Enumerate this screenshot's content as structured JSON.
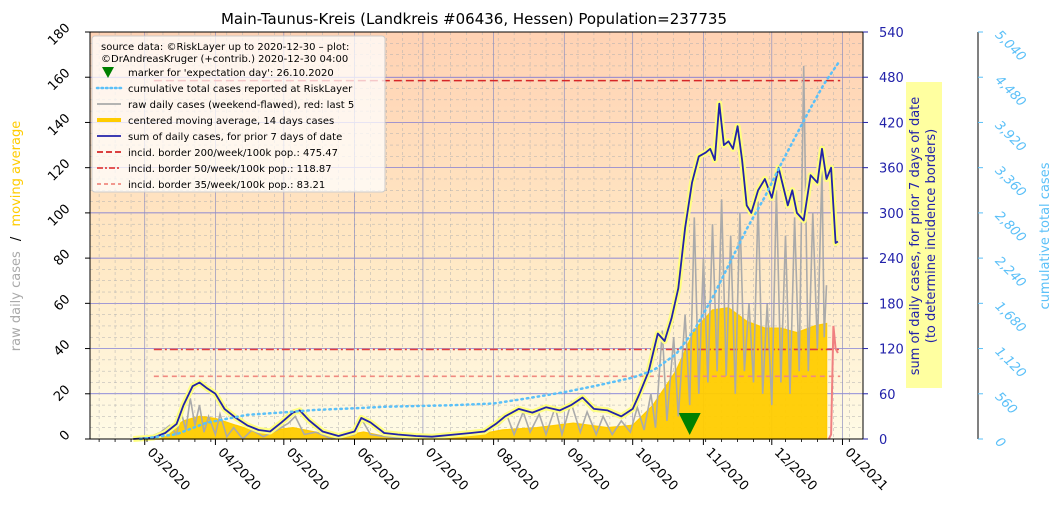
{
  "chart_data": {
    "type": "line",
    "title": "Main-Taunus-Kreis (Landkreis #06436, Hessen) Population=237735",
    "ylabel_left_gray": "raw daily cases",
    "ylabel_left_sep": "/",
    "ylabel_left_yellow": "moving average",
    "ylabel_right_line1": "sum of daily cases, for prior 7 days of date",
    "ylabel_right_line2": "(to determine incidence borders)",
    "ylabel_far_right": "cumulative total cases",
    "x_tick_labels": [
      "03/2020",
      "04/2020",
      "05/2020",
      "06/2020",
      "07/2020",
      "08/2020",
      "09/2020",
      "10/2020",
      "11/2020",
      "12/2020",
      "01/2021"
    ],
    "x_tick_dates": [
      "2020-03-01",
      "2020-04-01",
      "2020-05-01",
      "2020-06-01",
      "2020-07-01",
      "2020-08-01",
      "2020-09-01",
      "2020-10-01",
      "2020-11-01",
      "2020-12-01",
      "2021-01-01"
    ],
    "xlim": [
      "2020-02-06",
      "2021-01-10"
    ],
    "ylim_left": [
      0,
      180
    ],
    "y_ticks_left": [
      "0",
      "20",
      "40",
      "60",
      "80",
      "100",
      "120",
      "140",
      "160",
      "180"
    ],
    "ylim_right": [
      0,
      540
    ],
    "y_ticks_right": [
      "0",
      "60",
      "120",
      "180",
      "240",
      "300",
      "360",
      "420",
      "480",
      "540"
    ],
    "ylim_far_right": [
      0,
      5040
    ],
    "y_ticks_far_right": [
      "0",
      "560",
      "1,120",
      "1,680",
      "2,240",
      "2,800",
      "3,360",
      "3,920",
      "4,480",
      "5,040"
    ],
    "legend": {
      "placement": "top-left",
      "source_line1": "source data: ©RiskLayer up to 2020-12-30 – plot:",
      "source_line2": "©DrAndreasKruger (+contrib.) 2020-12-30 04:00",
      "entries": [
        "marker for 'expectation day': 26.10.2020",
        "cumulative total cases reported at RiskLayer",
        "raw daily cases (weekend-flawed), red: last 5",
        "centered moving average, 14 days cases",
        "sum of daily cases, for prior 7 days of date",
        "incid. border 200/week/100k pop.: 475.47",
        "incid. border 50/week/100k pop.: 118.87",
        "incid. border 35/week/100k pop.: 83.21"
      ]
    },
    "incidence_borders": [
      475.47,
      118.87,
      83.21
    ],
    "expectation_day": "2020-10-26",
    "colors": {
      "raw": "#aaaaaa",
      "raw_last5": "#f08080",
      "moving_average": "#ffcc00",
      "sum7": "#2222aa",
      "cumulative": "#5bc0f8",
      "border200": "#d62728",
      "border50": "#e04040",
      "border35": "#f08a80",
      "marker": "#008000",
      "left_axis_gray": "#aaaaaa",
      "left_axis_yellow": "#ffcc00",
      "right_axis": "#2222aa",
      "far_right_axis": "#5bc0f8"
    },
    "sum7_series": [
      [
        "2020-02-25",
        0
      ],
      [
        "2020-03-05",
        2
      ],
      [
        "2020-03-10",
        8
      ],
      [
        "2020-03-15",
        20
      ],
      [
        "2020-03-18",
        45
      ],
      [
        "2020-03-22",
        70
      ],
      [
        "2020-03-25",
        75
      ],
      [
        "2020-03-28",
        68
      ],
      [
        "2020-04-01",
        60
      ],
      [
        "2020-04-05",
        40
      ],
      [
        "2020-04-10",
        28
      ],
      [
        "2020-04-15",
        18
      ],
      [
        "2020-04-20",
        12
      ],
      [
        "2020-04-25",
        10
      ],
      [
        "2020-04-30",
        22
      ],
      [
        "2020-05-05",
        35
      ],
      [
        "2020-05-08",
        38
      ],
      [
        "2020-05-12",
        25
      ],
      [
        "2020-05-18",
        10
      ],
      [
        "2020-05-25",
        4
      ],
      [
        "2020-06-01",
        10
      ],
      [
        "2020-06-04",
        28
      ],
      [
        "2020-06-08",
        22
      ],
      [
        "2020-06-14",
        8
      ],
      [
        "2020-06-20",
        6
      ],
      [
        "2020-06-28",
        4
      ],
      [
        "2020-07-05",
        3
      ],
      [
        "2020-07-15",
        6
      ],
      [
        "2020-07-22",
        8
      ],
      [
        "2020-07-28",
        10
      ],
      [
        "2020-08-02",
        20
      ],
      [
        "2020-08-06",
        30
      ],
      [
        "2020-08-12",
        40
      ],
      [
        "2020-08-18",
        35
      ],
      [
        "2020-08-24",
        42
      ],
      [
        "2020-08-30",
        38
      ],
      [
        "2020-09-04",
        45
      ],
      [
        "2020-09-09",
        55
      ],
      [
        "2020-09-14",
        40
      ],
      [
        "2020-09-20",
        38
      ],
      [
        "2020-09-26",
        30
      ],
      [
        "2020-10-01",
        40
      ],
      [
        "2020-10-04",
        60
      ],
      [
        "2020-10-08",
        90
      ],
      [
        "2020-10-12",
        140
      ],
      [
        "2020-10-15",
        130
      ],
      [
        "2020-10-18",
        160
      ],
      [
        "2020-10-21",
        200
      ],
      [
        "2020-10-24",
        280
      ],
      [
        "2020-10-27",
        340
      ],
      [
        "2020-10-30",
        375
      ],
      [
        "2020-11-02",
        380
      ],
      [
        "2020-11-04",
        385
      ],
      [
        "2020-11-06",
        370
      ],
      [
        "2020-11-08",
        445
      ],
      [
        "2020-11-10",
        390
      ],
      [
        "2020-11-12",
        395
      ],
      [
        "2020-11-14",
        385
      ],
      [
        "2020-11-16",
        415
      ],
      [
        "2020-11-18",
        370
      ],
      [
        "2020-11-20",
        310
      ],
      [
        "2020-11-22",
        300
      ],
      [
        "2020-11-25",
        330
      ],
      [
        "2020-11-28",
        345
      ],
      [
        "2020-12-01",
        320
      ],
      [
        "2020-12-04",
        360
      ],
      [
        "2020-12-06",
        335
      ],
      [
        "2020-12-08",
        310
      ],
      [
        "2020-12-10",
        330
      ],
      [
        "2020-12-12",
        300
      ],
      [
        "2020-12-15",
        290
      ],
      [
        "2020-12-18",
        350
      ],
      [
        "2020-12-21",
        340
      ],
      [
        "2020-12-23",
        385
      ],
      [
        "2020-12-25",
        345
      ],
      [
        "2020-12-27",
        360
      ],
      [
        "2020-12-29",
        260
      ],
      [
        "2020-12-30",
        262
      ]
    ],
    "moving_average_series": [
      [
        "2020-02-25",
        0
      ],
      [
        "2020-03-10",
        2
      ],
      [
        "2020-03-18",
        8
      ],
      [
        "2020-03-25",
        10
      ],
      [
        "2020-04-01",
        9
      ],
      [
        "2020-04-10",
        6
      ],
      [
        "2020-04-20",
        3
      ],
      [
        "2020-05-05",
        5
      ],
      [
        "2020-05-15",
        3
      ],
      [
        "2020-05-25",
        1
      ],
      [
        "2020-06-05",
        3
      ],
      [
        "2020-06-15",
        1
      ],
      [
        "2020-07-01",
        0.5
      ],
      [
        "2020-07-20",
        1
      ],
      [
        "2020-08-05",
        4
      ],
      [
        "2020-08-20",
        5
      ],
      [
        "2020-09-05",
        7
      ],
      [
        "2020-09-20",
        5
      ],
      [
        "2020-10-01",
        6
      ],
      [
        "2020-10-10",
        15
      ],
      [
        "2020-10-20",
        30
      ],
      [
        "2020-10-28",
        48
      ],
      [
        "2020-11-05",
        57
      ],
      [
        "2020-11-12",
        58
      ],
      [
        "2020-11-20",
        52
      ],
      [
        "2020-11-28",
        49
      ],
      [
        "2020-12-05",
        49
      ],
      [
        "2020-12-12",
        47
      ],
      [
        "2020-12-20",
        50
      ],
      [
        "2020-12-25",
        51
      ]
    ],
    "raw_series": [
      [
        "2020-03-01",
        0
      ],
      [
        "2020-03-08",
        3
      ],
      [
        "2020-03-12",
        6
      ],
      [
        "2020-03-15",
        2
      ],
      [
        "2020-03-17",
        12
      ],
      [
        "2020-03-19",
        4
      ],
      [
        "2020-03-21",
        18
      ],
      [
        "2020-03-23",
        6
      ],
      [
        "2020-03-25",
        15
      ],
      [
        "2020-03-27",
        3
      ],
      [
        "2020-03-29",
        10
      ],
      [
        "2020-04-01",
        2
      ],
      [
        "2020-04-03",
        11
      ],
      [
        "2020-04-06",
        1
      ],
      [
        "2020-04-09",
        5
      ],
      [
        "2020-04-13",
        0
      ],
      [
        "2020-04-17",
        4
      ],
      [
        "2020-04-22",
        1
      ],
      [
        "2020-04-28",
        4
      ],
      [
        "2020-05-03",
        7
      ],
      [
        "2020-05-06",
        10
      ],
      [
        "2020-05-10",
        2
      ],
      [
        "2020-05-15",
        3
      ],
      [
        "2020-05-22",
        0
      ],
      [
        "2020-06-01",
        2
      ],
      [
        "2020-06-04",
        9
      ],
      [
        "2020-06-08",
        2
      ],
      [
        "2020-06-15",
        1
      ],
      [
        "2020-06-25",
        0
      ],
      [
        "2020-07-10",
        1
      ],
      [
        "2020-07-25",
        2
      ],
      [
        "2020-08-03",
        6
      ],
      [
        "2020-08-07",
        10
      ],
      [
        "2020-08-10",
        2
      ],
      [
        "2020-08-14",
        12
      ],
      [
        "2020-08-17",
        3
      ],
      [
        "2020-08-21",
        11
      ],
      [
        "2020-08-24",
        2
      ],
      [
        "2020-08-28",
        14
      ],
      [
        "2020-08-31",
        2
      ],
      [
        "2020-09-04",
        16
      ],
      [
        "2020-09-08",
        3
      ],
      [
        "2020-09-11",
        12
      ],
      [
        "2020-09-15",
        2
      ],
      [
        "2020-09-18",
        10
      ],
      [
        "2020-09-22",
        2
      ],
      [
        "2020-09-26",
        8
      ],
      [
        "2020-09-30",
        3
      ],
      [
        "2020-10-03",
        14
      ],
      [
        "2020-10-06",
        4
      ],
      [
        "2020-10-09",
        20
      ],
      [
        "2020-10-11",
        5
      ],
      [
        "2020-10-14",
        48
      ],
      [
        "2020-10-16",
        8
      ],
      [
        "2020-10-19",
        45
      ],
      [
        "2020-10-21",
        10
      ],
      [
        "2020-10-24",
        55
      ],
      [
        "2020-10-26",
        15
      ],
      [
        "2020-10-28",
        98
      ],
      [
        "2020-10-30",
        20
      ],
      [
        "2020-11-01",
        80
      ],
      [
        "2020-11-03",
        25
      ],
      [
        "2020-11-05",
        95
      ],
      [
        "2020-11-07",
        30
      ],
      [
        "2020-11-09",
        106
      ],
      [
        "2020-11-11",
        28
      ],
      [
        "2020-11-13",
        90
      ],
      [
        "2020-11-15",
        20
      ],
      [
        "2020-11-17",
        100
      ],
      [
        "2020-11-19",
        30
      ],
      [
        "2020-11-21",
        60
      ],
      [
        "2020-11-23",
        25
      ],
      [
        "2020-11-25",
        105
      ],
      [
        "2020-11-27",
        20
      ],
      [
        "2020-11-29",
        60
      ],
      [
        "2020-12-01",
        15
      ],
      [
        "2020-12-03",
        110
      ],
      [
        "2020-12-05",
        25
      ],
      [
        "2020-12-07",
        90
      ],
      [
        "2020-12-09",
        20
      ],
      [
        "2020-12-11",
        98
      ],
      [
        "2020-12-13",
        30
      ],
      [
        "2020-12-15",
        165
      ],
      [
        "2020-12-17",
        30
      ],
      [
        "2020-12-19",
        100
      ],
      [
        "2020-12-21",
        40
      ],
      [
        "2020-12-23",
        120
      ],
      [
        "2020-12-24",
        45
      ],
      [
        "2020-12-25",
        68
      ]
    ],
    "raw_last5_series": [
      [
        "2020-12-26",
        0
      ],
      [
        "2020-12-27",
        2
      ],
      [
        "2020-12-28",
        50
      ],
      [
        "2020-12-29",
        40
      ],
      [
        "2020-12-30",
        38
      ]
    ],
    "cumulative_series": [
      [
        "2020-02-28",
        0
      ],
      [
        "2020-03-15",
        60
      ],
      [
        "2020-03-28",
        200
      ],
      [
        "2020-04-15",
        300
      ],
      [
        "2020-05-01",
        330
      ],
      [
        "2020-05-15",
        360
      ],
      [
        "2020-06-01",
        380
      ],
      [
        "2020-06-15",
        400
      ],
      [
        "2020-07-01",
        410
      ],
      [
        "2020-07-15",
        420
      ],
      [
        "2020-08-01",
        440
      ],
      [
        "2020-08-15",
        500
      ],
      [
        "2020-09-01",
        580
      ],
      [
        "2020-09-15",
        660
      ],
      [
        "2020-10-01",
        760
      ],
      [
        "2020-10-10",
        850
      ],
      [
        "2020-10-20",
        1050
      ],
      [
        "2020-10-28",
        1350
      ],
      [
        "2020-11-05",
        1750
      ],
      [
        "2020-11-12",
        2150
      ],
      [
        "2020-11-20",
        2600
      ],
      [
        "2020-11-28",
        3000
      ],
      [
        "2020-12-05",
        3400
      ],
      [
        "2020-12-12",
        3780
      ],
      [
        "2020-12-18",
        4100
      ],
      [
        "2020-12-24",
        4400
      ],
      [
        "2020-12-30",
        4650
      ]
    ]
  }
}
